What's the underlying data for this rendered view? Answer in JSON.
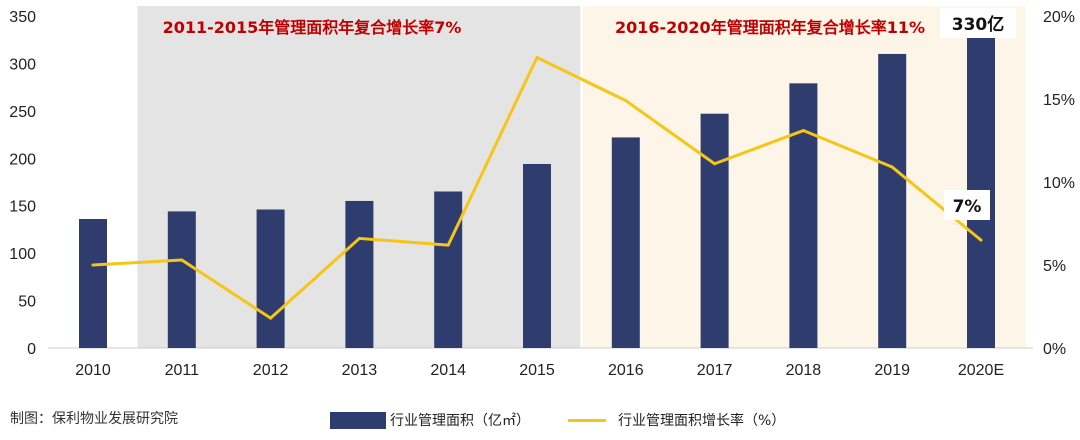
{
  "chart_data": {
    "type": "bar+line",
    "categories": [
      "2010",
      "2011",
      "2012",
      "2013",
      "2014",
      "2015",
      "2016",
      "2017",
      "2018",
      "2019",
      "2020E"
    ],
    "series": [
      {
        "name": "行业管理面积（亿㎡）",
        "type": "bar",
        "axis": "left",
        "color": "#2e3d6e",
        "values": [
          136,
          144,
          146,
          155,
          165,
          194,
          222,
          247,
          279,
          310,
          330
        ]
      },
      {
        "name": "行业管理面积增长率（%）",
        "type": "line",
        "axis": "right",
        "color": "#f5c518",
        "values": [
          5.0,
          5.3,
          1.8,
          6.6,
          6.2,
          17.5,
          14.9,
          11.1,
          13.1,
          10.9,
          6.5
        ]
      }
    ],
    "left_axis": {
      "min": 0,
      "max": 350,
      "ticks": [
        "0",
        "50",
        "100",
        "150",
        "200",
        "250",
        "300",
        "350"
      ]
    },
    "right_axis": {
      "min": 0,
      "max": 20,
      "ticks": [
        "0%",
        "5%",
        "10%",
        "15%",
        "20%"
      ]
    },
    "shaded_periods": [
      {
        "from": "2011",
        "to": "2015",
        "color": "#e4e4e4",
        "label": "2011-2015年管理面积年复合增长率7%",
        "label_color": "#c00000"
      },
      {
        "from": "2016",
        "to": "2020E",
        "color": "#fdf5e8",
        "label": "2016-2020年管理面积年复合增长率11%",
        "label_color": "#c00000"
      }
    ],
    "callouts": [
      {
        "text": "330亿",
        "category": "2020E"
      },
      {
        "text": "7%",
        "category": "2020E"
      }
    ],
    "legend_position": "bottom"
  },
  "source_text": "制图：保利物业发展研究院"
}
